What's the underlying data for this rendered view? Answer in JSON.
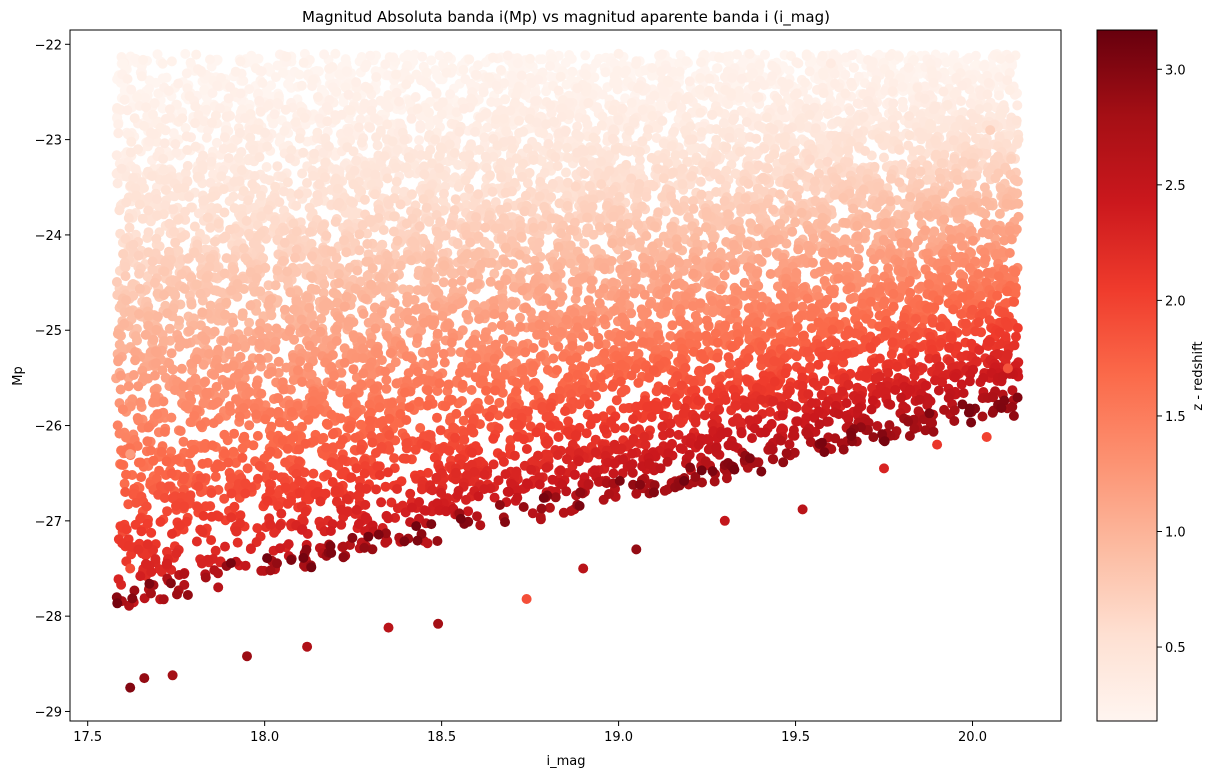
{
  "chart_data": {
    "type": "scatter",
    "title": "Magnitud Absoluta banda i(Mp) vs magnitud aparente banda i (i_mag)",
    "xlabel": "i_mag",
    "ylabel": "Mp",
    "xlim": [
      17.45,
      20.25
    ],
    "ylim": [
      -29.1,
      -21.85
    ],
    "xticks": [
      17.5,
      18.0,
      18.5,
      19.0,
      19.5,
      20.0
    ],
    "xtick_labels": [
      "17.5",
      "18.0",
      "18.5",
      "19.0",
      "19.5",
      "20.0"
    ],
    "yticks": [
      -22,
      -23,
      -24,
      -25,
      -26,
      -27,
      -28,
      -29
    ],
    "ytick_labels": [
      "−22",
      "−23",
      "−24",
      "−25",
      "−26",
      "−27",
      "−28",
      "−29"
    ],
    "colormap": "Reds",
    "color_variable": "z",
    "colorbar": {
      "label": "z - redshift",
      "lim": [
        0.18,
        3.17
      ],
      "ticks": [
        0.5,
        1.0,
        1.5,
        2.0,
        2.5,
        3.0
      ],
      "tick_labels": [
        "0.5",
        "1.0",
        "1.5",
        "2.0",
        "2.5",
        "3.0"
      ]
    },
    "grid": false,
    "points": [
      {
        "x": 17.62,
        "y": -28.75,
        "z": 3.0
      },
      {
        "x": 17.66,
        "y": -28.65,
        "z": 2.9
      },
      {
        "x": 17.74,
        "y": -28.62,
        "z": 2.8
      },
      {
        "x": 17.95,
        "y": -28.42,
        "z": 2.85
      },
      {
        "x": 18.12,
        "y": -28.32,
        "z": 2.7
      },
      {
        "x": 18.35,
        "y": -28.12,
        "z": 2.6
      },
      {
        "x": 18.49,
        "y": -28.08,
        "z": 2.8
      },
      {
        "x": 18.74,
        "y": -27.82,
        "z": 1.9
      },
      {
        "x": 18.9,
        "y": -27.5,
        "z": 2.6
      },
      {
        "x": 19.05,
        "y": -27.3,
        "z": 2.9
      },
      {
        "x": 19.3,
        "y": -27.0,
        "z": 2.5
      },
      {
        "x": 19.52,
        "y": -26.88,
        "z": 2.6
      },
      {
        "x": 19.75,
        "y": -26.45,
        "z": 2.3
      },
      {
        "x": 19.9,
        "y": -26.2,
        "z": 2.1
      },
      {
        "x": 20.04,
        "y": -26.12,
        "z": 2.0
      },
      {
        "x": 20.1,
        "y": -25.4,
        "z": 1.85
      },
      {
        "x": 17.6,
        "y": -22.2,
        "z": 0.2
      },
      {
        "x": 18.2,
        "y": -22.1,
        "z": 0.2
      },
      {
        "x": 19.0,
        "y": -22.1,
        "z": 0.25
      },
      {
        "x": 19.6,
        "y": -22.2,
        "z": 0.35
      },
      {
        "x": 20.05,
        "y": -22.9,
        "z": 0.7
      },
      {
        "x": 17.6,
        "y": -24.2,
        "z": 0.7
      },
      {
        "x": 17.62,
        "y": -26.3,
        "z": 1.2
      },
      {
        "x": 17.62,
        "y": -27.5,
        "z": 1.9
      }
    ]
  }
}
